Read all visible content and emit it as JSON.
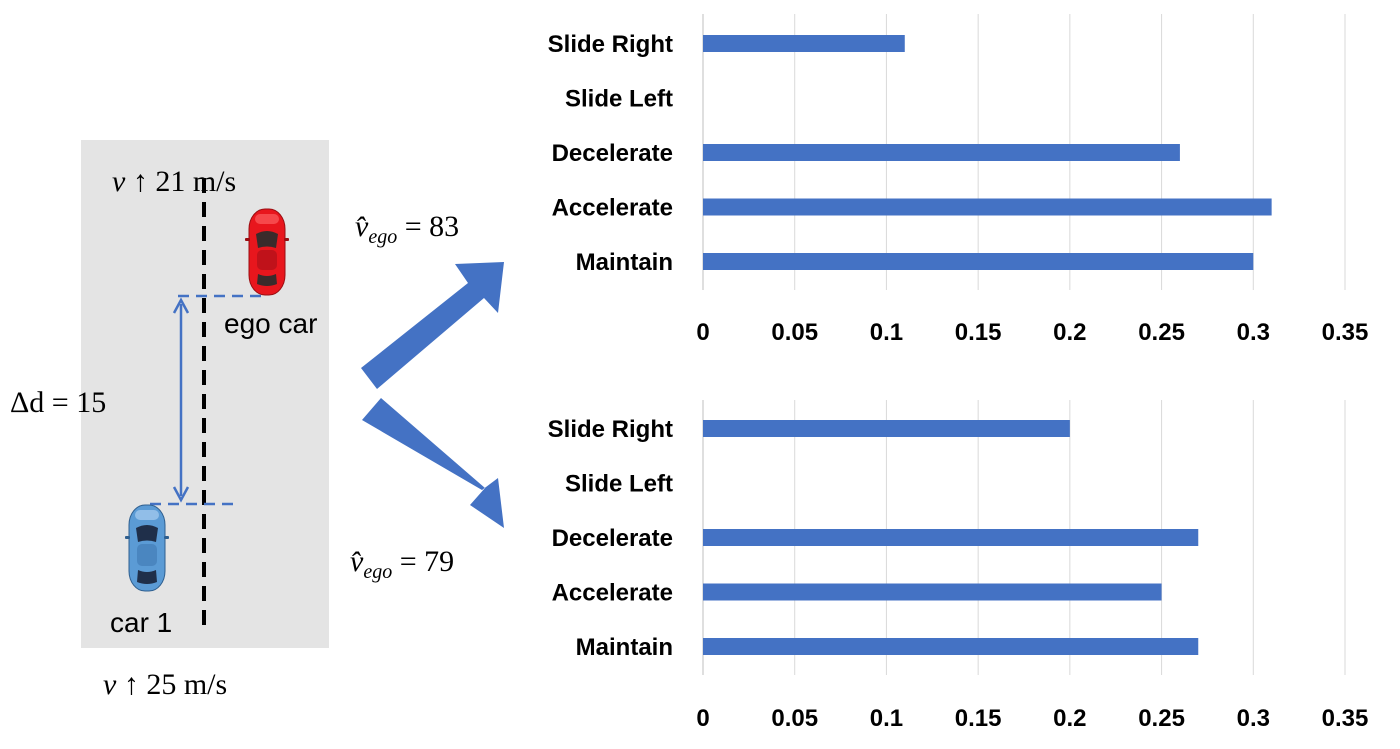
{
  "scene": {
    "top_speed": {
      "symbol": "v",
      "arrow": "↑",
      "value": "21",
      "unit": "m/s"
    },
    "bottom_speed": {
      "symbol": "v",
      "arrow": "↑",
      "value": "25",
      "unit": "m/s"
    },
    "delta_d": {
      "symbol": "Δd",
      "eq": "=",
      "value": "15"
    },
    "ego_label": "ego car",
    "car1_label": "car 1",
    "vego_top": {
      "symbol": "v̂",
      "sub": "ego",
      "eq": "=",
      "value": "83"
    },
    "vego_bottom": {
      "symbol": "v̂",
      "sub": "ego",
      "eq": "=",
      "value": "79"
    },
    "colors": {
      "ego_car": "#e8161d",
      "car1": "#5b9bd5",
      "arrow": "#4472c4",
      "bar": "#4472c4",
      "road": "#e4e4e4"
    }
  },
  "chart_data": [
    {
      "type": "bar",
      "orientation": "horizontal",
      "categories": [
        "Slide Right",
        "Slide Left",
        "Decelerate",
        "Accelerate",
        "Maintain"
      ],
      "values": [
        0.11,
        0,
        0.26,
        0.31,
        0.3
      ],
      "xlim": [
        0,
        0.35
      ],
      "xticks": [
        "0",
        "0.05",
        "0.1",
        "0.15",
        "0.2",
        "0.25",
        "0.3",
        "0.35"
      ],
      "grid": true
    },
    {
      "type": "bar",
      "orientation": "horizontal",
      "categories": [
        "Slide Right",
        "Slide Left",
        "Decelerate",
        "Accelerate",
        "Maintain"
      ],
      "values": [
        0.2,
        0,
        0.27,
        0.25,
        0.27
      ],
      "xlim": [
        0,
        0.35
      ],
      "xticks": [
        "0",
        "0.05",
        "0.1",
        "0.15",
        "0.2",
        "0.25",
        "0.3",
        "0.35"
      ],
      "grid": true
    }
  ]
}
